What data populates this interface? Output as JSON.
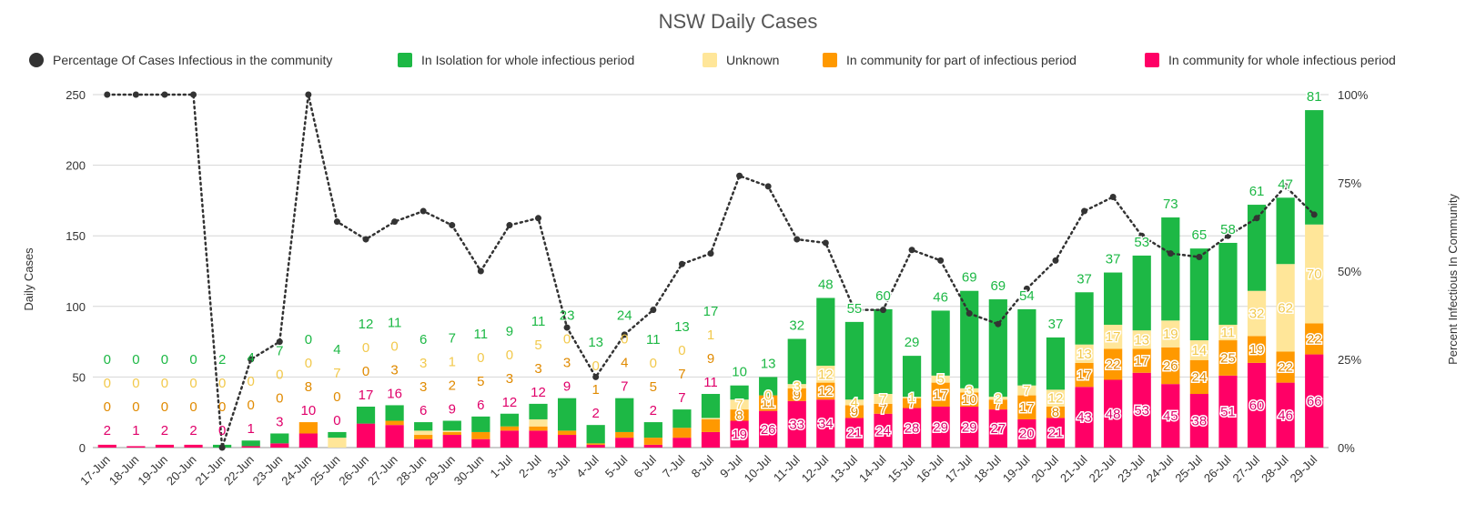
{
  "chart_data": {
    "type": "bar",
    "title": "NSW Daily Cases",
    "ylabel": "Daily Cases",
    "y2label": "Percent Infectious In Community",
    "ylim": [
      0,
      250
    ],
    "y_ticks": [
      "0",
      "50",
      "100",
      "150",
      "200",
      "250"
    ],
    "y2_ticks": [
      "0%",
      "25%",
      "50%",
      "75%",
      "100%"
    ],
    "grid": true,
    "legend_position": "top",
    "categories": [
      "17-Jun",
      "18-Jun",
      "19-Jun",
      "20-Jun",
      "21-Jun",
      "22-Jun",
      "23-Jun",
      "24-Jun",
      "25-Jun",
      "26-Jun",
      "27-Jun",
      "28-Jun",
      "29-Jun",
      "30-Jun",
      "1-Jul",
      "2-Jul",
      "3-Jul",
      "4-Jul",
      "5-Jul",
      "6-Jul",
      "7-Jul",
      "8-Jul",
      "9-Jul",
      "10-Jul",
      "11-Jul",
      "12-Jul",
      "13-Jul",
      "14-Jul",
      "15-Jul",
      "16-Jul",
      "17-Jul",
      "18-Jul",
      "19-Jul",
      "20-Jul",
      "21-Jul",
      "22-Jul",
      "23-Jul",
      "24-Jul",
      "25-Jul",
      "26-Jul",
      "27-Jul",
      "28-Jul",
      "29-Jul"
    ],
    "series": [
      {
        "name": "In community for whole infectious period",
        "color": "#ff0066",
        "values": [
          2,
          1,
          2,
          2,
          0,
          1,
          3,
          10,
          0,
          17,
          16,
          6,
          9,
          6,
          12,
          12,
          9,
          2,
          7,
          2,
          7,
          11,
          19,
          26,
          33,
          34,
          21,
          24,
          28,
          29,
          29,
          27,
          20,
          21,
          43,
          48,
          53,
          45,
          38,
          51,
          60,
          46,
          66
        ]
      },
      {
        "name": "In community for part of infectious period",
        "color": "#ff9900",
        "values": [
          0,
          0,
          0,
          0,
          0,
          0,
          0,
          8,
          0,
          0,
          3,
          3,
          2,
          5,
          3,
          3,
          3,
          1,
          4,
          5,
          7,
          9,
          8,
          11,
          9,
          12,
          9,
          7,
          7,
          17,
          10,
          7,
          17,
          8,
          17,
          22,
          17,
          26,
          24,
          25,
          19,
          22,
          22
        ]
      },
      {
        "name": "Unknown",
        "color": "#ffe699",
        "values": [
          0,
          0,
          0,
          0,
          0,
          0,
          0,
          0,
          7,
          0,
          0,
          3,
          1,
          0,
          0,
          5,
          0,
          0,
          0,
          0,
          0,
          1,
          7,
          0,
          3,
          12,
          4,
          7,
          1,
          5,
          3,
          2,
          7,
          12,
          13,
          17,
          13,
          19,
          14,
          11,
          32,
          62,
          70
        ]
      },
      {
        "name": "In Isolation for whole infectious period",
        "color": "#1db845",
        "values": [
          0,
          0,
          0,
          0,
          2,
          4,
          7,
          0,
          4,
          12,
          11,
          6,
          7,
          11,
          9,
          11,
          23,
          13,
          24,
          11,
          13,
          17,
          10,
          13,
          32,
          48,
          55,
          60,
          29,
          46,
          69,
          69,
          54,
          37,
          37,
          37,
          53,
          73,
          65,
          58,
          61,
          47,
          81
        ]
      }
    ],
    "community_percentage": {
      "name": "Percentage Of Cases Infectious in the community",
      "color": "#333333",
      "values": [
        100,
        100,
        100,
        100,
        0,
        25,
        30,
        100,
        64,
        59,
        64,
        67,
        63,
        50,
        63,
        65,
        34,
        20,
        32,
        39,
        52,
        55,
        77,
        74,
        59,
        58,
        39,
        39,
        56,
        53,
        38,
        35,
        45,
        53,
        67,
        71,
        60,
        55,
        54,
        60,
        65,
        74,
        66
      ]
    }
  }
}
